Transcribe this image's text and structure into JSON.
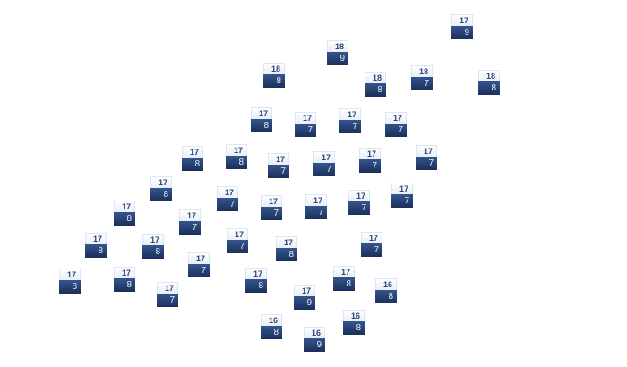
{
  "markers": [
    {
      "top": "17",
      "bottom": "9"
    },
    {
      "top": "18",
      "bottom": "9"
    },
    {
      "top": "18",
      "bottom": "8"
    },
    {
      "top": "18",
      "bottom": "8"
    },
    {
      "top": "18",
      "bottom": "7"
    },
    {
      "top": "18",
      "bottom": "8"
    },
    {
      "top": "17",
      "bottom": "8"
    },
    {
      "top": "17",
      "bottom": "7"
    },
    {
      "top": "17",
      "bottom": "7"
    },
    {
      "top": "17",
      "bottom": "7"
    },
    {
      "top": "17",
      "bottom": "8"
    },
    {
      "top": "17",
      "bottom": "8"
    },
    {
      "top": "17",
      "bottom": "7"
    },
    {
      "top": "17",
      "bottom": "7"
    },
    {
      "top": "17",
      "bottom": "7"
    },
    {
      "top": "17",
      "bottom": "7"
    },
    {
      "top": "17",
      "bottom": "8"
    },
    {
      "top": "17",
      "bottom": "7"
    },
    {
      "top": "17",
      "bottom": "7"
    },
    {
      "top": "17",
      "bottom": "7"
    },
    {
      "top": "17",
      "bottom": "7"
    },
    {
      "top": "17",
      "bottom": "7"
    },
    {
      "top": "17",
      "bottom": "8"
    },
    {
      "top": "17",
      "bottom": "7"
    },
    {
      "top": "17",
      "bottom": "7"
    },
    {
      "top": "17",
      "bottom": "8"
    },
    {
      "top": "17",
      "bottom": "7"
    },
    {
      "top": "17",
      "bottom": "8"
    },
    {
      "top": "17",
      "bottom": "8"
    },
    {
      "top": "17",
      "bottom": "7"
    },
    {
      "top": "17",
      "bottom": "8"
    },
    {
      "top": "17",
      "bottom": "8"
    },
    {
      "top": "17",
      "bottom": "7"
    },
    {
      "top": "17",
      "bottom": "8"
    },
    {
      "top": "17",
      "bottom": "8"
    },
    {
      "top": "17",
      "bottom": "9"
    },
    {
      "top": "16",
      "bottom": "8"
    },
    {
      "top": "16",
      "bottom": "8"
    },
    {
      "top": "16",
      "bottom": "8"
    },
    {
      "top": "16",
      "bottom": "9"
    }
  ],
  "colors": {
    "tile_top": "#f2f5fb",
    "tile_bottom": "#23396a",
    "top_text": "#2e4677",
    "bottom_text": "#e6ecf6"
  }
}
